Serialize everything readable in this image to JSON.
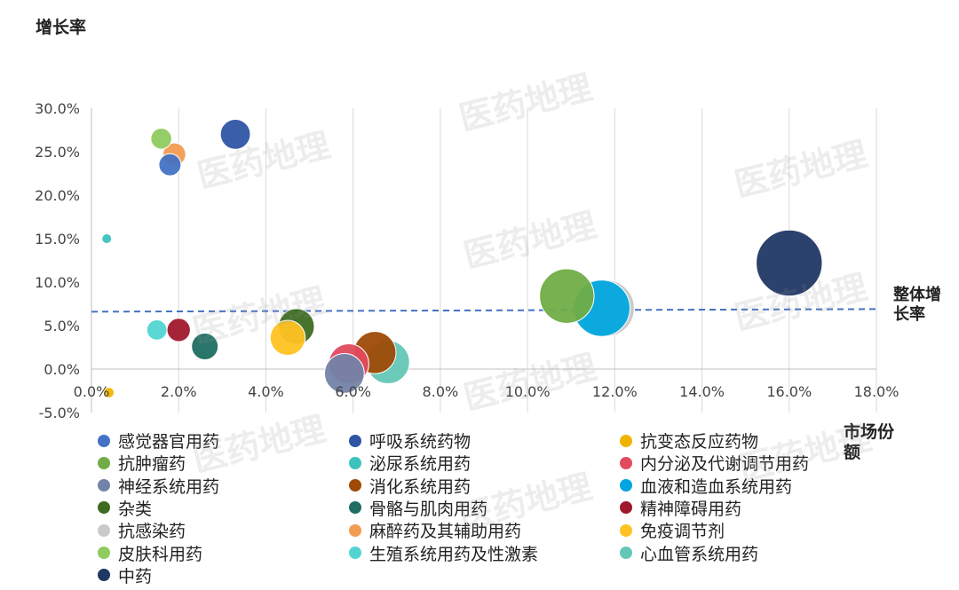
{
  "chart_data": {
    "type": "scatter",
    "bubble": true,
    "ylabel": "增长率",
    "xlabel": "市场份额",
    "xlim": [
      0,
      18
    ],
    "ylim": [
      -5,
      30
    ],
    "x_ticks": [
      "0.0%",
      "2.0%",
      "4.0%",
      "6.0%",
      "8.0%",
      "10.0%",
      "12.0%",
      "14.0%",
      "16.0%",
      "18.0%"
    ],
    "y_ticks": [
      "30.0%",
      "25.0%",
      "20.0%",
      "15.0%",
      "10.0%",
      "5.0%",
      "0.0%",
      "-5.0%"
    ],
    "x_unit": "%",
    "y_unit": "%",
    "reference_line": {
      "label": "整体增长率",
      "y_start": 6.6,
      "y_end": 6.9
    },
    "grid": "vertical",
    "legend_position": "bottom",
    "series": [
      {
        "name": "感觉器官用药",
        "color": "#4472C4",
        "x": 1.8,
        "y": 23.5,
        "size": 1.8
      },
      {
        "name": "呼吸系统药物",
        "color": "#2F55A4",
        "x": 3.3,
        "y": 27.0,
        "size": 3.3
      },
      {
        "name": "抗变态反应药物",
        "color": "#F0B400",
        "x": 0.4,
        "y": -2.7,
        "size": 0.4
      },
      {
        "name": "抗肿瘤药",
        "color": "#70AD47",
        "x": 10.9,
        "y": 8.4,
        "size": 10.9
      },
      {
        "name": "泌尿系统用药",
        "color": "#3CC3BF",
        "x": 0.35,
        "y": 15.0,
        "size": 0.35
      },
      {
        "name": "内分泌及代谢调节用药",
        "color": "#E24A5E",
        "x": 5.9,
        "y": 0.6,
        "size": 5.9
      },
      {
        "name": "神经系统用药",
        "color": "#7383A8",
        "x": 5.8,
        "y": -0.5,
        "size": 5.8
      },
      {
        "name": "消化系统用药",
        "color": "#9E4A06",
        "x": 6.5,
        "y": 1.9,
        "size": 6.5
      },
      {
        "name": "血液和造血系统用药",
        "color": "#00A6DD",
        "x": 11.7,
        "y": 7.0,
        "size": 11.7
      },
      {
        "name": "杂类",
        "color": "#3D6B22",
        "x": 4.7,
        "y": 4.9,
        "size": 4.7
      },
      {
        "name": "骨骼与肌肉用药",
        "color": "#1F6E62",
        "x": 2.6,
        "y": 2.6,
        "size": 2.6
      },
      {
        "name": "精神障碍用药",
        "color": "#A0182C",
        "x": 2.0,
        "y": 4.5,
        "size": 2.0
      },
      {
        "name": "抗感染药",
        "color": "#C9C9C9",
        "x": 11.8,
        "y": 7.0,
        "size": 11.8
      },
      {
        "name": "麻醉药及其辅助用药",
        "color": "#F29B52",
        "x": 1.9,
        "y": 24.7,
        "size": 1.9
      },
      {
        "name": "免疫调节剂",
        "color": "#FFC222",
        "x": 4.5,
        "y": 3.6,
        "size": 4.5
      },
      {
        "name": "皮肤科用药",
        "color": "#8FCB5F",
        "x": 1.6,
        "y": 26.5,
        "size": 1.6
      },
      {
        "name": "生殖系统用药及性激素",
        "color": "#52D5D2",
        "x": 1.5,
        "y": 4.5,
        "size": 1.5
      },
      {
        "name": "心血管系统用药",
        "color": "#64C7B6",
        "x": 6.8,
        "y": 0.8,
        "size": 6.8
      },
      {
        "name": "中药",
        "color": "#1F3864",
        "x": 16.0,
        "y": 12.2,
        "size": 16.0
      }
    ]
  },
  "watermark": "医药地理"
}
